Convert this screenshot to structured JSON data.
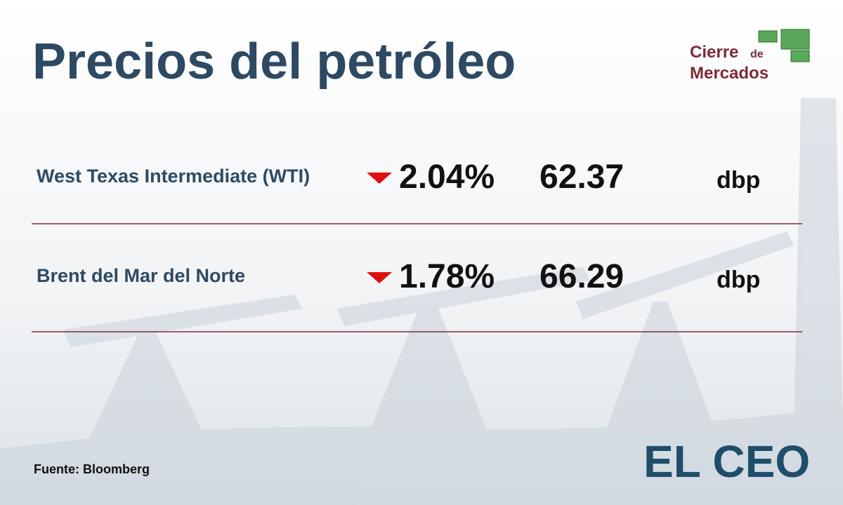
{
  "header": {
    "title": "Precios del petróleo",
    "badge": {
      "line1": "Cierre",
      "line1_small": "de",
      "line2": "Mercados"
    }
  },
  "rows": [
    {
      "name": "West Texas Intermediate (WTI)",
      "change": "2.04%",
      "price": "62.37",
      "unit": "dbp"
    },
    {
      "name": "Brent del Mar del Norte",
      "change": "1.78%",
      "price": "66.29",
      "unit": "dbp"
    }
  ],
  "footer": {
    "source": "Fuente: Bloomberg",
    "logo": "EL CEO"
  }
}
